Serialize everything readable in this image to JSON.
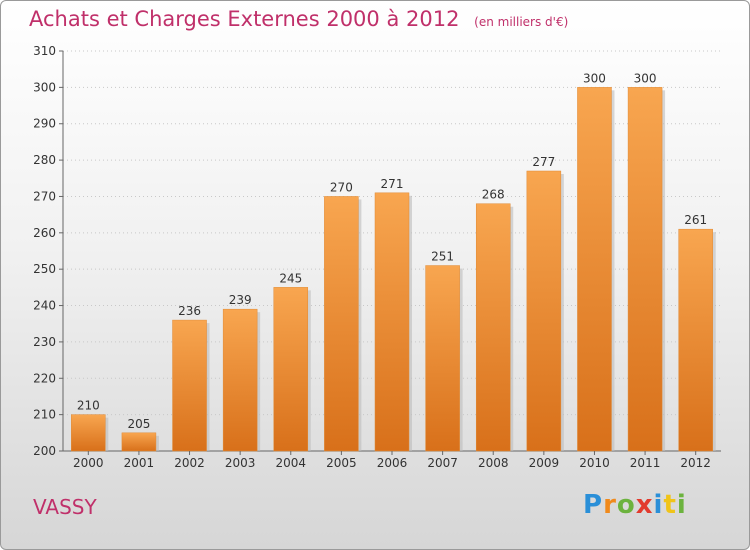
{
  "chart_data": {
    "type": "bar",
    "title": "Achats et Charges Externes 2000 à 2012",
    "subtitle": "(en milliers d'€)",
    "categories": [
      "2000",
      "2001",
      "2002",
      "2003",
      "2004",
      "2005",
      "2006",
      "2007",
      "2008",
      "2009",
      "2010",
      "2011",
      "2012"
    ],
    "values": [
      210,
      205,
      236,
      239,
      245,
      270,
      271,
      251,
      268,
      277,
      300,
      300,
      261
    ],
    "ylim": [
      200,
      310
    ],
    "yticks": [
      200,
      210,
      220,
      230,
      240,
      250,
      260,
      270,
      280,
      290,
      300,
      310
    ],
    "grid": true,
    "bar_color": "#f29030"
  },
  "commune": "VASSY",
  "logo": "Proxiti"
}
